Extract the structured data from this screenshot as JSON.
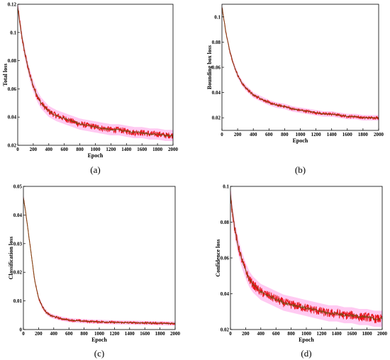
{
  "colors": {
    "series_primary": "#e8121a",
    "series_secondary": "#7a4a12",
    "band": "#ff9ee8",
    "background": "#ffffff",
    "axis": "#000000"
  },
  "chart_data": [
    {
      "panel": "(a)",
      "type": "line",
      "title": "",
      "xlabel": "Epoch",
      "ylabel": "Total loss",
      "xlim": [
        0,
        2000
      ],
      "ylim": [
        0.02,
        0.12
      ],
      "xticks": [
        0,
        200,
        400,
        600,
        800,
        1000,
        1200,
        1400,
        1600,
        1800,
        2000
      ],
      "yticks": [
        0.02,
        0.04,
        0.06,
        0.08,
        0.1,
        0.12
      ],
      "ytick_labels": [
        "0.02",
        "0.04",
        "0.06",
        "0.08",
        "0.1",
        "0.12"
      ],
      "x": [
        0,
        25,
        50,
        75,
        100,
        150,
        200,
        250,
        300,
        350,
        400,
        500,
        600,
        700,
        800,
        900,
        1000,
        1100,
        1200,
        1300,
        1400,
        1500,
        1600,
        1700,
        1800,
        1900,
        2000
      ],
      "series": [
        {
          "values": [
            0.118,
            0.108,
            0.098,
            0.09,
            0.083,
            0.071,
            0.062,
            0.055,
            0.05,
            0.047,
            0.044,
            0.041,
            0.039,
            0.037,
            0.035,
            0.034,
            0.033,
            0.032,
            0.031,
            0.031,
            0.03,
            0.029,
            0.029,
            0.028,
            0.028,
            0.027,
            0.027
          ]
        }
      ],
      "noise": 0.0022,
      "grid": false
    },
    {
      "panel": "(b)",
      "type": "line",
      "title": "",
      "xlabel": "Epoch",
      "ylabel": "Bounding box loss",
      "xlim": [
        0,
        2000
      ],
      "ylim": [
        0.01,
        0.11
      ],
      "xticks": [
        0,
        200,
        400,
        600,
        800,
        1000,
        1200,
        1400,
        1600,
        1800,
        2000
      ],
      "yticks": [
        0.02,
        0.04,
        0.06,
        0.08,
        0.1
      ],
      "ytick_labels": [
        "0.02",
        "0.04",
        "0.06",
        "0.08",
        "0.1"
      ],
      "x": [
        0,
        25,
        50,
        75,
        100,
        150,
        200,
        250,
        300,
        350,
        400,
        500,
        600,
        700,
        800,
        900,
        1000,
        1100,
        1200,
        1300,
        1400,
        1500,
        1600,
        1700,
        1800,
        1900,
        2000
      ],
      "series": [
        {
          "values": [
            0.108,
            0.098,
            0.088,
            0.08,
            0.073,
            0.062,
            0.054,
            0.048,
            0.044,
            0.041,
            0.038,
            0.035,
            0.032,
            0.03,
            0.029,
            0.027,
            0.026,
            0.025,
            0.024,
            0.023,
            0.023,
            0.022,
            0.021,
            0.021,
            0.02,
            0.02,
            0.02
          ]
        }
      ],
      "noise": 0.0012,
      "grid": false
    },
    {
      "panel": "(c)",
      "type": "line",
      "title": "",
      "xlabel": "Epoch",
      "ylabel": "Classification loss",
      "xlim": [
        0,
        2000
      ],
      "ylim": [
        0.0,
        0.05
      ],
      "xticks": [
        0,
        200,
        400,
        600,
        800,
        1000,
        1200,
        1400,
        1600,
        1800,
        2000
      ],
      "yticks": [
        0.0,
        0.01,
        0.02,
        0.03,
        0.04,
        0.05
      ],
      "ytick_labels": [
        "0",
        "0.01",
        "0.02",
        "0.03",
        "0.04",
        "0.05"
      ],
      "x": [
        0,
        25,
        50,
        75,
        100,
        125,
        150,
        200,
        250,
        300,
        350,
        400,
        500,
        600,
        800,
        1000,
        1200,
        1400,
        1600,
        1800,
        2000
      ],
      "series": [
        {
          "values": [
            0.046,
            0.042,
            0.037,
            0.032,
            0.027,
            0.022,
            0.017,
            0.011,
            0.008,
            0.006,
            0.005,
            0.0045,
            0.0038,
            0.0033,
            0.0029,
            0.0027,
            0.0025,
            0.0024,
            0.0023,
            0.0022,
            0.0021
          ]
        }
      ],
      "noise": 0.0004,
      "grid": false
    },
    {
      "panel": "(d)",
      "type": "line",
      "title": "",
      "xlabel": "Epoch",
      "ylabel": "Confidence loss",
      "xlim": [
        0,
        2000
      ],
      "ylim": [
        0.02,
        0.1
      ],
      "xticks": [
        0,
        200,
        400,
        600,
        800,
        1000,
        1200,
        1400,
        1600,
        1800,
        2000
      ],
      "yticks": [
        0.02,
        0.04,
        0.06,
        0.08,
        0.1
      ],
      "ytick_labels": [
        "0.02",
        "0.04",
        "0.06",
        "0.08",
        "0.1"
      ],
      "x": [
        0,
        25,
        50,
        75,
        100,
        150,
        200,
        250,
        300,
        350,
        400,
        500,
        600,
        700,
        800,
        900,
        1000,
        1100,
        1200,
        1300,
        1400,
        1500,
        1600,
        1700,
        1800,
        1900,
        2000
      ],
      "series": [
        {
          "values": [
            0.095,
            0.086,
            0.078,
            0.072,
            0.067,
            0.059,
            0.053,
            0.048,
            0.045,
            0.043,
            0.041,
            0.039,
            0.037,
            0.035,
            0.034,
            0.033,
            0.032,
            0.031,
            0.03,
            0.029,
            0.029,
            0.028,
            0.028,
            0.027,
            0.027,
            0.026,
            0.026
          ]
        }
      ],
      "noise": 0.0025,
      "grid": false
    }
  ]
}
